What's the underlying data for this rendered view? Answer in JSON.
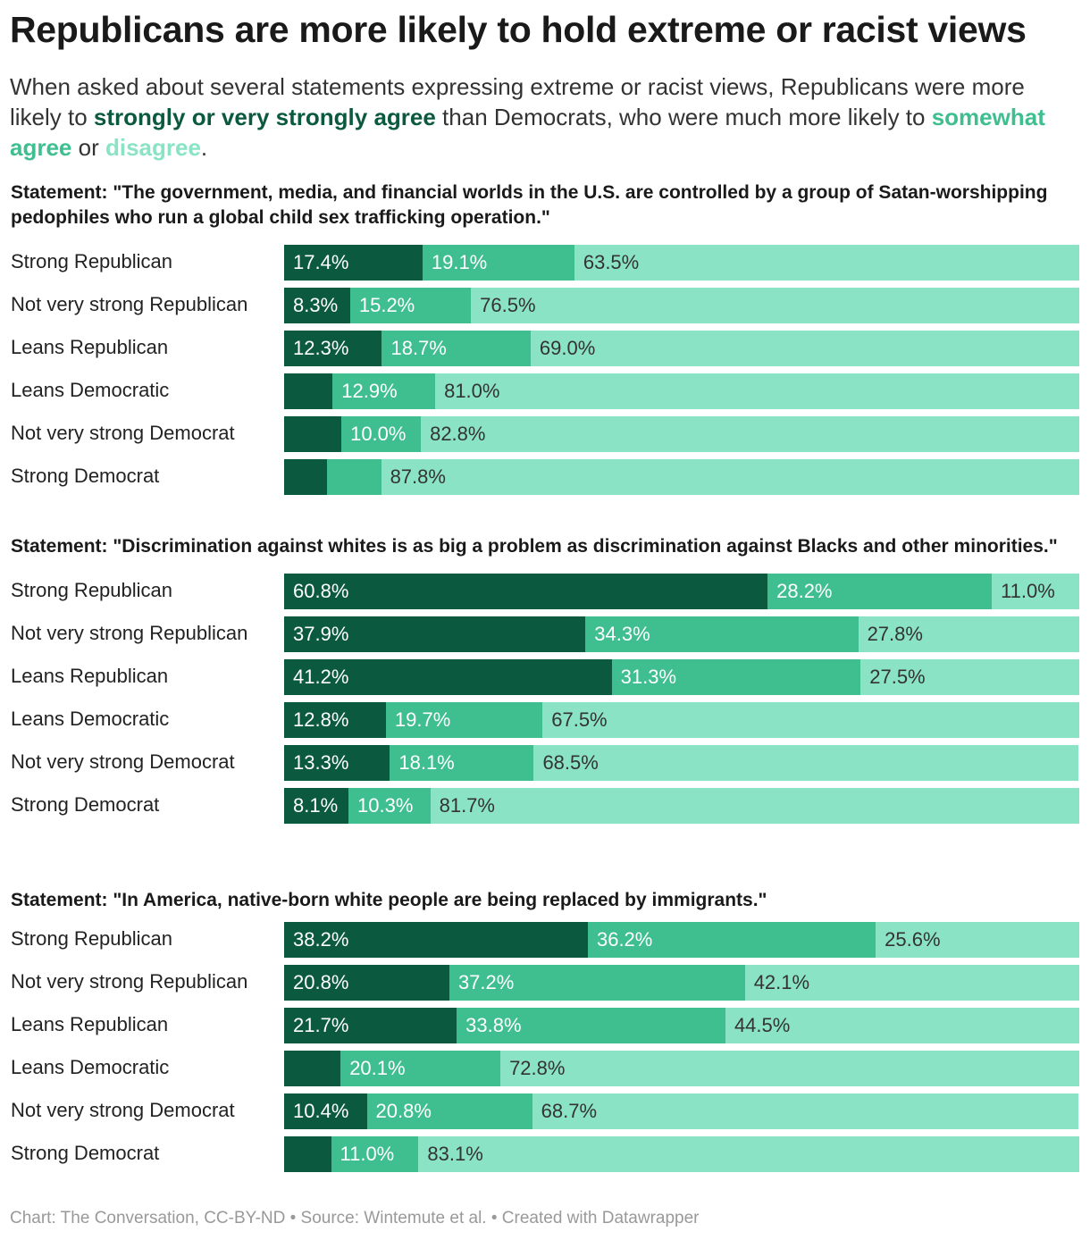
{
  "title": "Republicans are more likely to hold extreme or racist views",
  "subtitle": {
    "p1": "When asked about several statements expressing extreme or racist views, Republicans were more likely to ",
    "k1": "strongly or very strongly agree",
    "p2": " than Democrats, who were much more likely to ",
    "k2": "somewhat agree",
    "p3": " or ",
    "k3": "disagree",
    "p4": "."
  },
  "colors": {
    "strongly_agree": "#0b5a40",
    "somewhat_agree": "#3fbf8f",
    "disagree": "#8be3c6"
  },
  "chart_data": [
    {
      "type": "stacked-bar",
      "title": "Statement: \"The government, media, and financial worlds in the U.S. are controlled by a group of Satan-worshipping pedophiles who run a global child sex trafficking operation.\"",
      "categories": [
        "Strong Republican",
        "Not very strong Republican",
        "Leans Republican",
        "Leans Democratic",
        "Not very strong Democrat",
        "Strong Democrat"
      ],
      "series": [
        {
          "name": "strongly or very strongly agree",
          "values": [
            17.4,
            8.3,
            12.3,
            6.1,
            7.2,
            5.4
          ],
          "labels": [
            "17.4%",
            "8.3%",
            "12.3%",
            "",
            "",
            ""
          ]
        },
        {
          "name": "somewhat agree",
          "values": [
            19.1,
            15.2,
            18.7,
            12.9,
            10.0,
            6.8
          ],
          "labels": [
            "19.1%",
            "15.2%",
            "18.7%",
            "12.9%",
            "10.0%",
            ""
          ]
        },
        {
          "name": "disagree",
          "values": [
            63.5,
            76.5,
            69.0,
            81.0,
            82.8,
            87.8
          ],
          "labels": [
            "63.5%",
            "76.5%",
            "69.0%",
            "81.0%",
            "82.8%",
            "87.8%"
          ]
        }
      ]
    },
    {
      "type": "stacked-bar",
      "title": "Statement: \"Discrimination against whites is as big a problem as discrimination against Blacks and other minorities.\"",
      "categories": [
        "Strong Republican",
        "Not very strong Republican",
        "Leans Republican",
        "Leans Democratic",
        "Not very strong Democrat",
        "Strong Democrat"
      ],
      "series": [
        {
          "name": "strongly or very strongly agree",
          "values": [
            60.8,
            37.9,
            41.2,
            12.8,
            13.3,
            8.1
          ],
          "labels": [
            "60.8%",
            "37.9%",
            "41.2%",
            "12.8%",
            "13.3%",
            "8.1%"
          ]
        },
        {
          "name": "somewhat agree",
          "values": [
            28.2,
            34.3,
            31.3,
            19.7,
            18.1,
            10.3
          ],
          "labels": [
            "28.2%",
            "34.3%",
            "31.3%",
            "19.7%",
            "18.1%",
            "10.3%"
          ]
        },
        {
          "name": "disagree",
          "values": [
            11.0,
            27.8,
            27.5,
            67.5,
            68.5,
            81.7
          ],
          "labels": [
            "11.0%",
            "27.8%",
            "27.5%",
            "67.5%",
            "68.5%",
            "81.7%"
          ]
        }
      ]
    },
    {
      "type": "stacked-bar",
      "title": "Statement: \"In America, native-born white people are being replaced by immigrants.\"",
      "categories": [
        "Strong Republican",
        "Not very strong Republican",
        "Leans Republican",
        "Leans Democratic",
        "Not very strong Democrat",
        "Strong Democrat"
      ],
      "series": [
        {
          "name": "strongly or very strongly agree",
          "values": [
            38.2,
            20.8,
            21.7,
            7.1,
            10.4,
            5.9
          ],
          "labels": [
            "38.2%",
            "20.8%",
            "21.7%",
            "",
            "10.4%",
            ""
          ]
        },
        {
          "name": "somewhat agree",
          "values": [
            36.2,
            37.2,
            33.8,
            20.1,
            20.8,
            11.0
          ],
          "labels": [
            "36.2%",
            "37.2%",
            "33.8%",
            "20.1%",
            "20.8%",
            "11.0%"
          ]
        },
        {
          "name": "disagree",
          "values": [
            25.6,
            42.1,
            44.5,
            72.8,
            68.7,
            83.1
          ],
          "labels": [
            "25.6%",
            "42.1%",
            "44.5%",
            "72.8%",
            "68.7%",
            "83.1%"
          ]
        }
      ]
    }
  ],
  "footer": "Chart: The Conversation, CC-BY-ND • Source: Wintemute et al. • Created with Datawrapper"
}
